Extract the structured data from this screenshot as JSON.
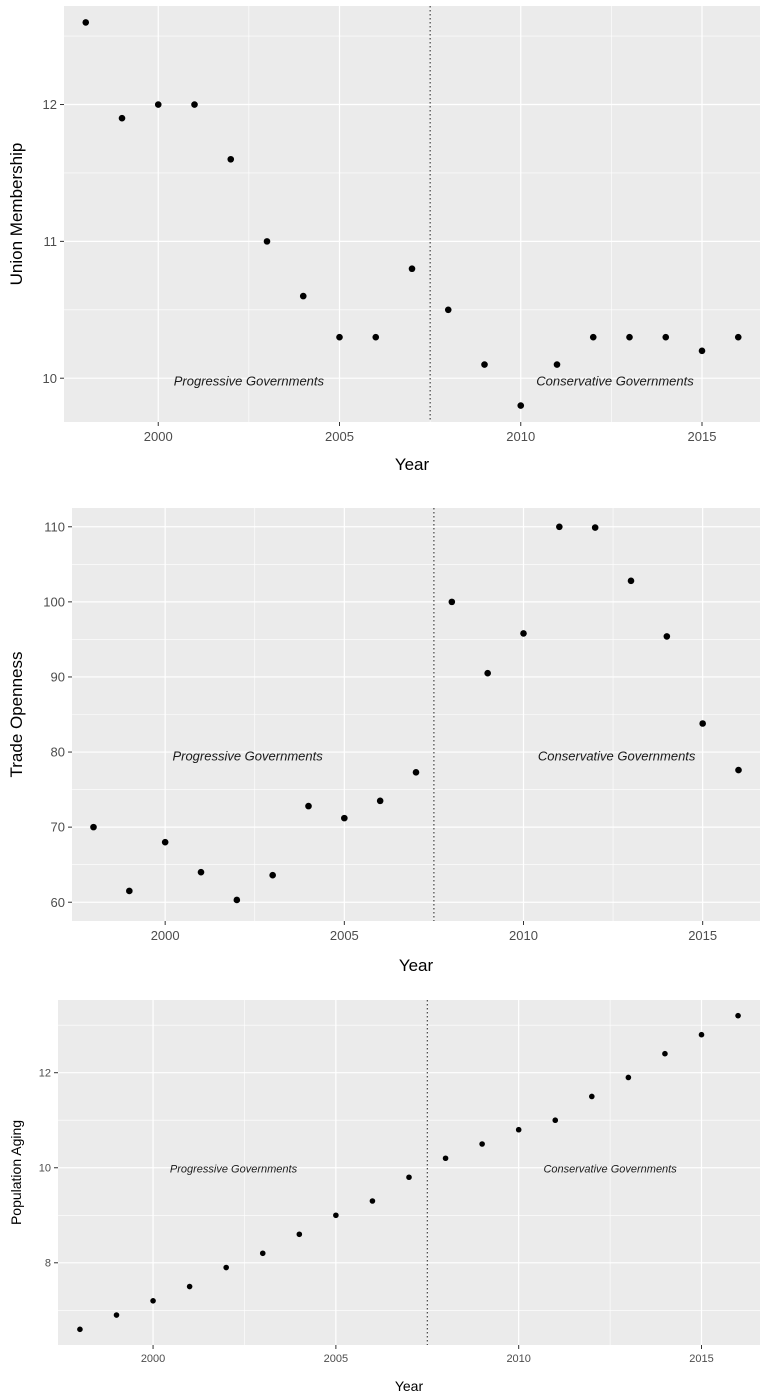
{
  "chart_data": [
    {
      "type": "scatter",
      "xlabel": "Year",
      "ylabel": "Union Membership",
      "xlim": [
        1997.4,
        2016.6
      ],
      "ylim": [
        9.68,
        12.72
      ],
      "xticks": [
        2000,
        2005,
        2010,
        2015
      ],
      "yticks": [
        10,
        11,
        12
      ],
      "grid": true,
      "divider_x": 2007.5,
      "annotations": [
        {
          "text": "Progressive Governments",
          "x": 2002.5,
          "y": 9.98
        },
        {
          "text": "Conservative Governments",
          "x": 2012.6,
          "y": 9.98
        }
      ],
      "x": [
        1998,
        1999,
        2000,
        2001,
        2002,
        2003,
        2004,
        2005,
        2006,
        2007,
        2008,
        2009,
        2010,
        2011,
        2012,
        2013,
        2014,
        2015,
        2016
      ],
      "y": [
        12.6,
        11.9,
        12.0,
        12.0,
        11.6,
        11.0,
        10.6,
        10.3,
        10.3,
        10.8,
        10.5,
        10.1,
        9.8,
        10.1,
        10.3,
        10.3,
        10.3,
        10.2,
        10.3
      ]
    },
    {
      "type": "scatter",
      "xlabel": "Year",
      "ylabel": "Trade Openness",
      "xlim": [
        1997.4,
        2016.6
      ],
      "ylim": [
        57.5,
        112.5
      ],
      "xticks": [
        2000,
        2005,
        2010,
        2015
      ],
      "yticks": [
        60,
        70,
        80,
        90,
        100,
        110
      ],
      "grid": true,
      "divider_x": 2007.5,
      "annotations": [
        {
          "text": "Progressive Governments",
          "x": 2002.3,
          "y": 79.5
        },
        {
          "text": "Conservative Governments",
          "x": 2012.6,
          "y": 79.5
        }
      ],
      "x": [
        1998,
        1999,
        2000,
        2001,
        2002,
        2003,
        2004,
        2005,
        2006,
        2007,
        2008,
        2009,
        2010,
        2011,
        2012,
        2013,
        2014,
        2015,
        2016
      ],
      "y": [
        70.0,
        61.5,
        68.0,
        64.0,
        60.3,
        63.6,
        72.8,
        71.2,
        73.5,
        77.3,
        100.0,
        90.5,
        95.8,
        110.0,
        109.9,
        102.8,
        95.4,
        83.8,
        77.6
      ]
    },
    {
      "type": "scatter",
      "xlabel": "Year",
      "ylabel": "Population Aging",
      "xlim": [
        1997.4,
        2016.6
      ],
      "ylim": [
        6.27,
        13.53
      ],
      "xticks": [
        2000,
        2005,
        2010,
        2015
      ],
      "yticks": [
        8,
        10,
        12
      ],
      "grid": true,
      "divider_x": 2007.5,
      "annotations": [
        {
          "text": "Progressive Governments",
          "x": 2002.2,
          "y": 9.98
        },
        {
          "text": "Conservative Governments",
          "x": 2012.5,
          "y": 9.98
        }
      ],
      "x": [
        1998,
        1999,
        2000,
        2001,
        2002,
        2003,
        2004,
        2005,
        2006,
        2007,
        2008,
        2009,
        2010,
        2011,
        2012,
        2013,
        2014,
        2015,
        2016
      ],
      "y": [
        6.6,
        6.9,
        7.2,
        7.5,
        7.9,
        8.2,
        8.6,
        9.0,
        9.3,
        9.8,
        10.2,
        10.5,
        10.8,
        11.0,
        11.5,
        11.9,
        12.4,
        12.8,
        13.2
      ]
    }
  ]
}
